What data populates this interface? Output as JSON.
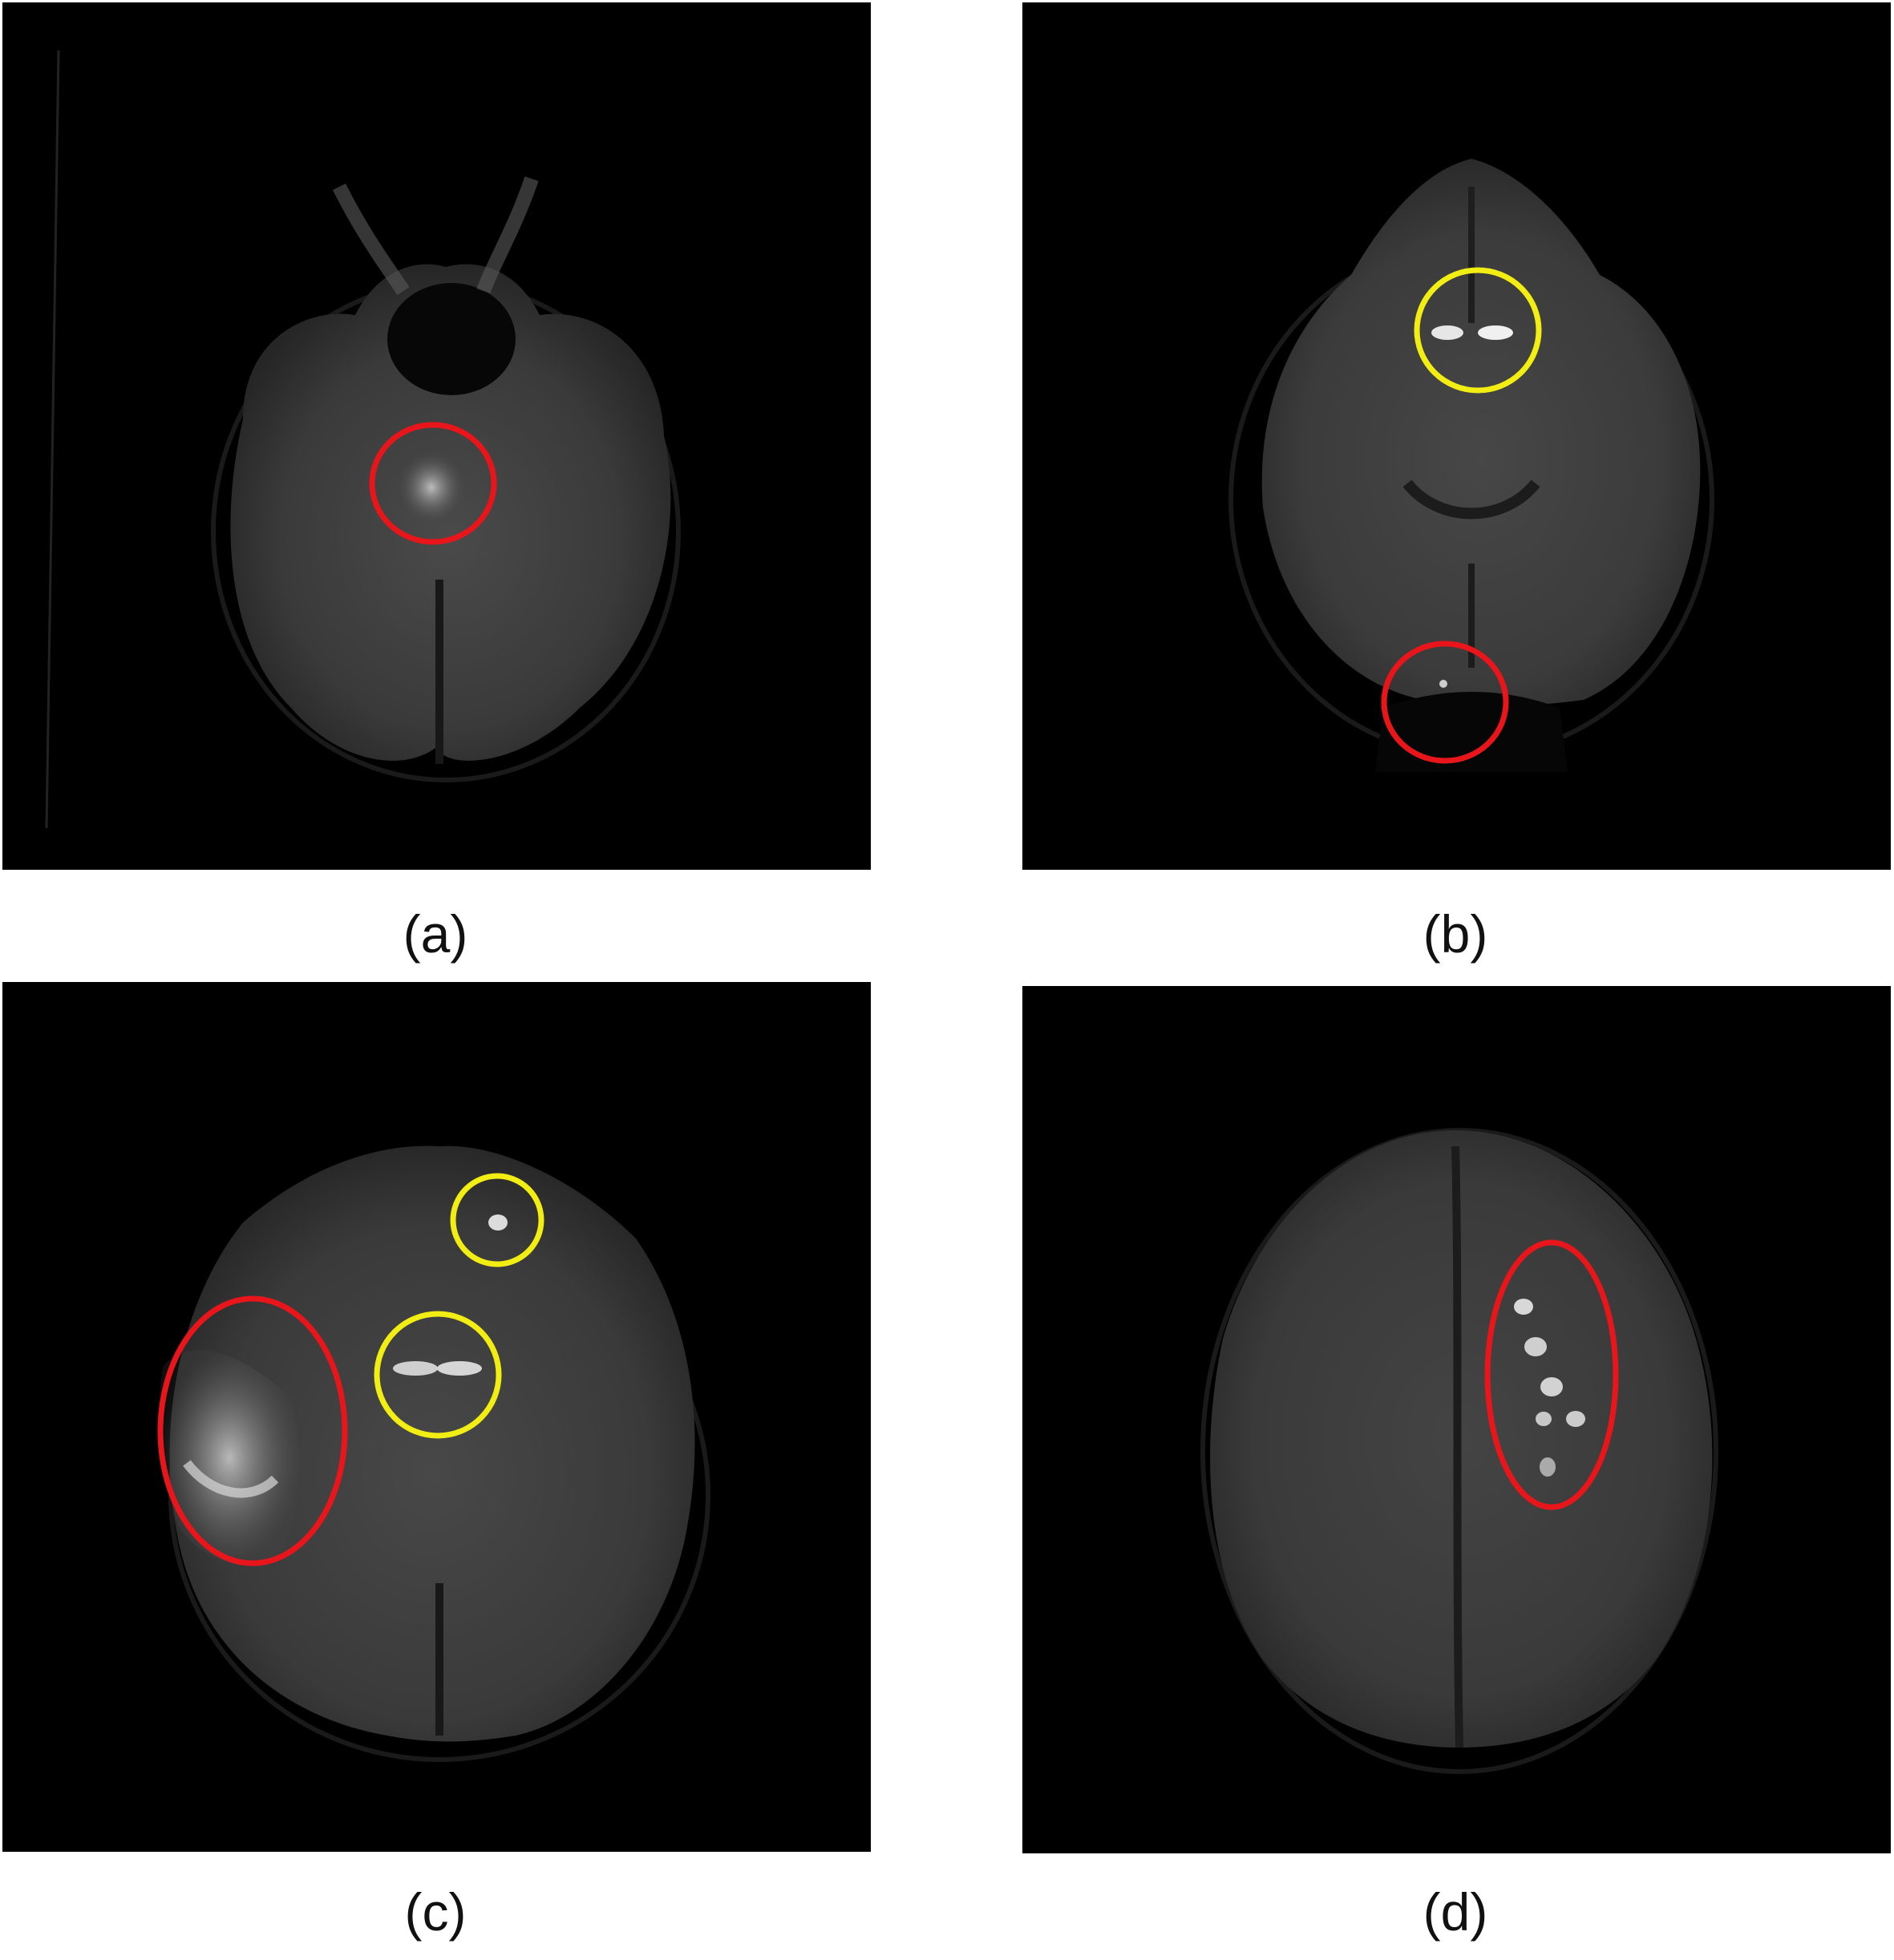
{
  "panels": [
    {
      "id": "a",
      "caption": "(a)",
      "description_name": "mri-slice-a"
    },
    {
      "id": "b",
      "caption": "(b)",
      "description_name": "mri-slice-b"
    },
    {
      "id": "c",
      "caption": "(c)",
      "description_name": "mri-slice-c"
    },
    {
      "id": "d",
      "caption": "(d)",
      "description_name": "mri-slice-d"
    }
  ],
  "colors": {
    "red_marker": "#e8161b",
    "yellow_marker": "#f2ee14",
    "background": "#000000",
    "caption_text": "#111111"
  }
}
